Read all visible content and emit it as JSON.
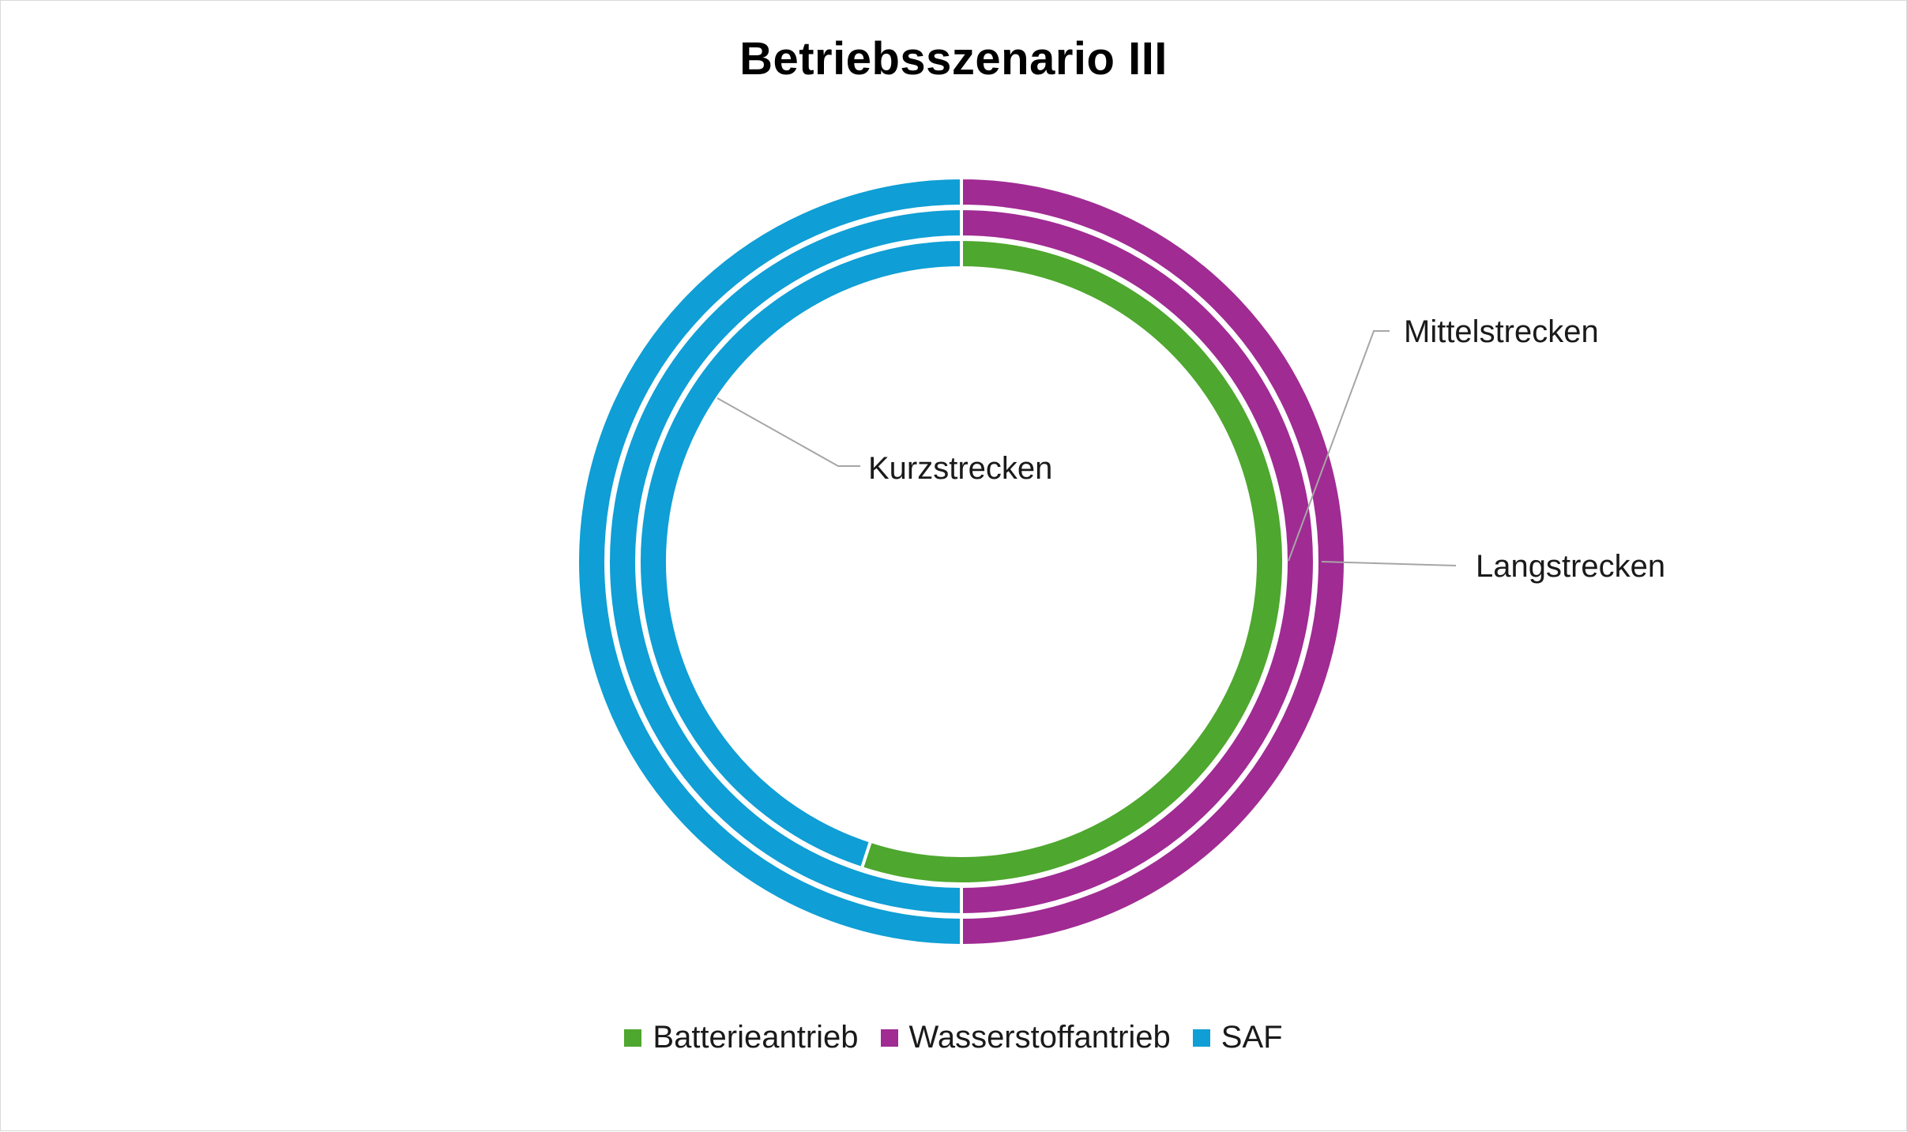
{
  "colors": {
    "battery": "#4ea72e",
    "hydrogen": "#a02b93",
    "saf": "#0f9ed5",
    "leader": "#a6a6a6"
  },
  "chart_data": {
    "type": "donut",
    "title": "Betriebsszenario III",
    "categories": [
      "Batterieantrieb",
      "Wasserstoffantrieb",
      "SAF"
    ],
    "rings": [
      {
        "name": "Kurzstrecken",
        "values": [
          0.55,
          0,
          0.45
        ]
      },
      {
        "name": "Mittelstrecken",
        "values": [
          0,
          0.5,
          0.5
        ]
      },
      {
        "name": "Langstrecken",
        "values": [
          0,
          0.5,
          0.5
        ]
      }
    ],
    "legend": {
      "position": "bottom",
      "items": [
        {
          "label": "Batterieantrieb",
          "color": "#4ea72e"
        },
        {
          "label": "Wasserstoffantrieb",
          "color": "#a02b93"
        },
        {
          "label": "SAF",
          "color": "#0f9ed5"
        }
      ]
    }
  }
}
